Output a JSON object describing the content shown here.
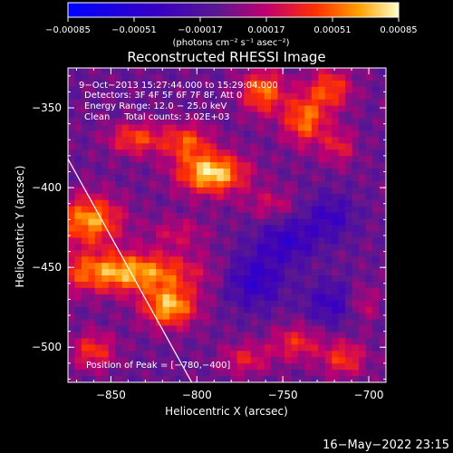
{
  "chart_data": {
    "type": "heatmap",
    "title": "Reconstructed RHESSI Image",
    "xlabel": "Heliocentric X (arcsec)",
    "ylabel": "Heliocentric Y (arcsec)",
    "xlim": [
      -875,
      -690
    ],
    "ylim": [
      -522,
      -325
    ],
    "x_ticks": [
      -850,
      -800,
      -750,
      -700
    ],
    "x_tick_labels": [
      "−850",
      "−800",
      "−750",
      "−700"
    ],
    "y_ticks": [
      -500,
      -450,
      -400,
      -350
    ],
    "y_tick_labels": [
      "−500",
      "−450",
      "−400",
      "−350"
    ],
    "colorbar": {
      "range": [
        -0.00085,
        0.00085
      ],
      "ticks": [
        -0.00085,
        -0.00051,
        -0.00017,
        0.00017,
        0.00051,
        0.00085
      ],
      "tick_labels": [
        "−0.00085",
        "−0.00051",
        "−0.00017",
        "0.00017",
        "0.00051",
        "0.00085"
      ],
      "unit_label": "(photons cm⁻² s⁻¹ asec⁻²)"
    },
    "info_lines": [
      "9−Oct−2013 15:27:44.000 to 15:29:04.000",
      "Detectors: 3F 4F 5F 6F 7F 8F, Att 0",
      "Energy Range: 12.0 − 25.0 keV",
      "Clean     Total counts: 3.02E+03"
    ],
    "peak_label": "Position of Peak = [−780,−400]",
    "peak": [
      -780,
      -400
    ],
    "limb_line": [
      [
        -875,
        -382
      ],
      [
        -803,
        -522
      ]
    ],
    "bright_regions": [
      {
        "x": -790,
        "y": -392,
        "sx": 14,
        "sy": 9,
        "amp": 0.00085
      },
      {
        "x": -805,
        "y": -372,
        "sx": 10,
        "sy": 8,
        "amp": 0.0005
      },
      {
        "x": -835,
        "y": -370,
        "sx": 11,
        "sy": 7,
        "amp": 0.0005
      },
      {
        "x": -842,
        "y": -455,
        "sx": 30,
        "sy": 9,
        "amp": 0.00075
      },
      {
        "x": -815,
        "y": -477,
        "sx": 11,
        "sy": 9,
        "amp": 0.00075
      },
      {
        "x": -862,
        "y": -422,
        "sx": 13,
        "sy": 11,
        "amp": 0.0007
      },
      {
        "x": -760,
        "y": -340,
        "sx": 9,
        "sy": 10,
        "amp": 0.0006
      },
      {
        "x": -735,
        "y": -358,
        "sx": 9,
        "sy": 11,
        "amp": 0.0006
      },
      {
        "x": -720,
        "y": -338,
        "sx": 9,
        "sy": 9,
        "amp": 0.0005
      },
      {
        "x": -715,
        "y": -375,
        "sx": 7,
        "sy": 8,
        "amp": 0.00035
      },
      {
        "x": -755,
        "y": -412,
        "sx": 10,
        "sy": 7,
        "amp": 0.00025
      },
      {
        "x": -810,
        "y": -430,
        "sx": 12,
        "sy": 7,
        "amp": 0.00025
      },
      {
        "x": -860,
        "y": -505,
        "sx": 9,
        "sy": 8,
        "amp": 0.00045
      },
      {
        "x": -770,
        "y": -510,
        "sx": 10,
        "sy": 7,
        "amp": 0.00035
      },
      {
        "x": -740,
        "y": -500,
        "sx": 10,
        "sy": 8,
        "amp": 0.0004
      },
      {
        "x": -712,
        "y": -510,
        "sx": 9,
        "sy": 8,
        "amp": 0.00045
      },
      {
        "x": -700,
        "y": -475,
        "sx": 6,
        "sy": 8,
        "amp": 0.00025
      },
      {
        "x": -765,
        "y": -460,
        "sx": 12,
        "sy": 12,
        "amp": -0.0004
      },
      {
        "x": -745,
        "y": -435,
        "sx": 12,
        "sy": 10,
        "amp": -0.00035
      },
      {
        "x": -720,
        "y": -475,
        "sx": 10,
        "sy": 10,
        "amp": -0.0003
      },
      {
        "x": -720,
        "y": -420,
        "sx": 10,
        "sy": 10,
        "amp": -0.0003
      }
    ]
  },
  "footer": {
    "timestamp": "16−May−2022 23:15"
  }
}
